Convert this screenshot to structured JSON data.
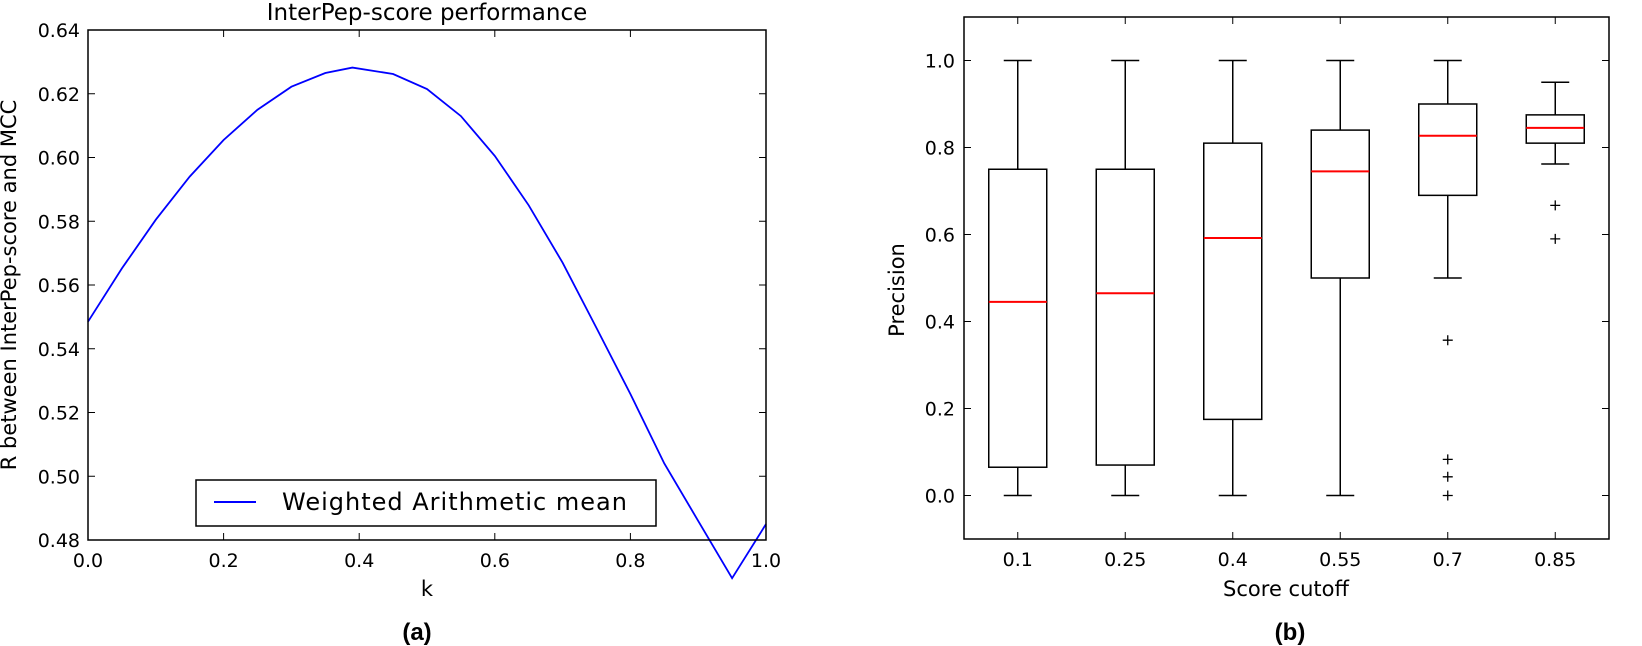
{
  "panels": {
    "a": "(a)",
    "b": "(b)"
  },
  "chart_data": [
    {
      "type": "line",
      "title": "InterPep-score performance",
      "xlabel": "k",
      "ylabel": "R between InterPep-score and MCC",
      "xlim": [
        0.0,
        1.0
      ],
      "ylim": [
        0.48,
        0.64
      ],
      "xticks": [
        "0.0",
        "0.2",
        "0.4",
        "0.6",
        "0.8",
        "1.0"
      ],
      "yticks": [
        "0.48",
        "0.50",
        "0.52",
        "0.54",
        "0.56",
        "0.58",
        "0.60",
        "0.62",
        "0.64"
      ],
      "legend_position": "lower center",
      "grid": false,
      "series": [
        {
          "name": "Weighted Arithmetic mean",
          "color": "#0000ff",
          "x": [
            0.0,
            0.05,
            0.1,
            0.15,
            0.2,
            0.25,
            0.3,
            0.35,
            0.39,
            0.45,
            0.5,
            0.55,
            0.6,
            0.65,
            0.7,
            0.75,
            0.8,
            0.85,
            0.9,
            0.95,
            1.0
          ],
          "y": [
            0.5485,
            0.5652,
            0.5805,
            0.594,
            0.6055,
            0.615,
            0.6222,
            0.6265,
            0.6282,
            0.6262,
            0.6215,
            0.613,
            0.6005,
            0.585,
            0.567,
            0.5465,
            0.5258,
            0.504,
            0.486,
            0.468,
            0.485
          ]
        }
      ]
    },
    {
      "type": "box",
      "title": "",
      "xlabel": "Score cutoff",
      "ylabel": "Precision",
      "ylim": [
        -0.1,
        1.1
      ],
      "yticks": [
        "0.0",
        "0.2",
        "0.4",
        "0.6",
        "0.8",
        "1.0"
      ],
      "grid": false,
      "median_color": "#ff0000",
      "categories": [
        "0.1",
        "0.25",
        "0.4",
        "0.55",
        "0.7",
        "0.85"
      ],
      "boxes": [
        {
          "whisker_low": 0.0,
          "q1": 0.065,
          "median": 0.445,
          "q3": 0.75,
          "whisker_high": 1.0,
          "outliers": []
        },
        {
          "whisker_low": 0.0,
          "q1": 0.07,
          "median": 0.465,
          "q3": 0.75,
          "whisker_high": 1.0,
          "outliers": []
        },
        {
          "whisker_low": 0.0,
          "q1": 0.175,
          "median": 0.592,
          "q3": 0.81,
          "whisker_high": 1.0,
          "outliers": []
        },
        {
          "whisker_low": 0.0,
          "q1": 0.5,
          "median": 0.745,
          "q3": 0.84,
          "whisker_high": 1.0,
          "outliers": []
        },
        {
          "whisker_low": 0.5,
          "q1": 0.69,
          "median": 0.827,
          "q3": 0.9,
          "whisker_high": 1.0,
          "outliers": [
            0.357,
            0.083,
            0.043,
            0.0
          ]
        },
        {
          "whisker_low": 0.762,
          "q1": 0.81,
          "median": 0.845,
          "q3": 0.875,
          "whisker_high": 0.95,
          "outliers": [
            0.667,
            0.59
          ]
        }
      ]
    }
  ]
}
